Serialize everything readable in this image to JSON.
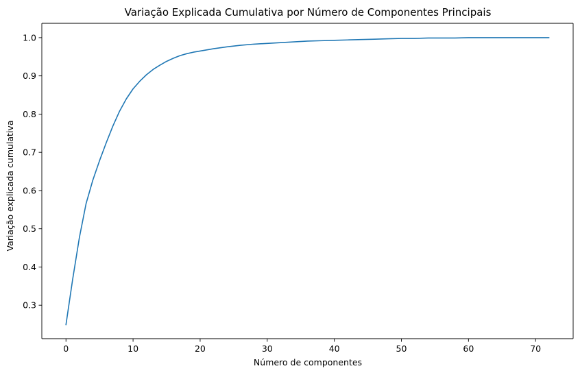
{
  "chart_data": {
    "type": "line",
    "title": "Variação Explicada Cumulativa por Número de Componentes Principais",
    "xlabel": "Número de componentes",
    "ylabel": "Variação explicada cumulativa",
    "xlim": [
      -3.6,
      75.6
    ],
    "ylim": [
      0.2125,
      1.0375
    ],
    "xticks": [
      0,
      10,
      20,
      30,
      40,
      50,
      60,
      70
    ],
    "xtick_labels": [
      "0",
      "10",
      "20",
      "30",
      "40",
      "50",
      "60",
      "70"
    ],
    "yticks": [
      0.3,
      0.4,
      0.5,
      0.6,
      0.7,
      0.8,
      0.9,
      1.0
    ],
    "ytick_labels": [
      "0.3",
      "0.4",
      "0.5",
      "0.6",
      "0.7",
      "0.8",
      "0.9",
      "1.0"
    ],
    "grid": false,
    "legend": "none",
    "series": [
      {
        "color": "#1f77b4",
        "x": [
          0,
          1,
          2,
          3,
          4,
          5,
          6,
          7,
          8,
          9,
          10,
          11,
          12,
          13,
          14,
          15,
          16,
          17,
          18,
          19,
          20,
          22,
          24,
          26,
          28,
          30,
          32,
          34,
          36,
          38,
          40,
          42,
          44,
          46,
          48,
          50,
          52,
          54,
          56,
          58,
          60,
          62,
          64,
          66,
          68,
          70,
          72
        ],
        "y": [
          0.249,
          0.368,
          0.477,
          0.566,
          0.627,
          0.678,
          0.725,
          0.769,
          0.808,
          0.84,
          0.866,
          0.886,
          0.903,
          0.917,
          0.928,
          0.938,
          0.946,
          0.953,
          0.958,
          0.962,
          0.965,
          0.971,
          0.976,
          0.98,
          0.983,
          0.985,
          0.987,
          0.989,
          0.991,
          0.992,
          0.993,
          0.994,
          0.995,
          0.996,
          0.997,
          0.998,
          0.998,
          0.999,
          0.999,
          0.999,
          1.0,
          1.0,
          1.0,
          1.0,
          1.0,
          1.0,
          1.0
        ]
      }
    ]
  }
}
